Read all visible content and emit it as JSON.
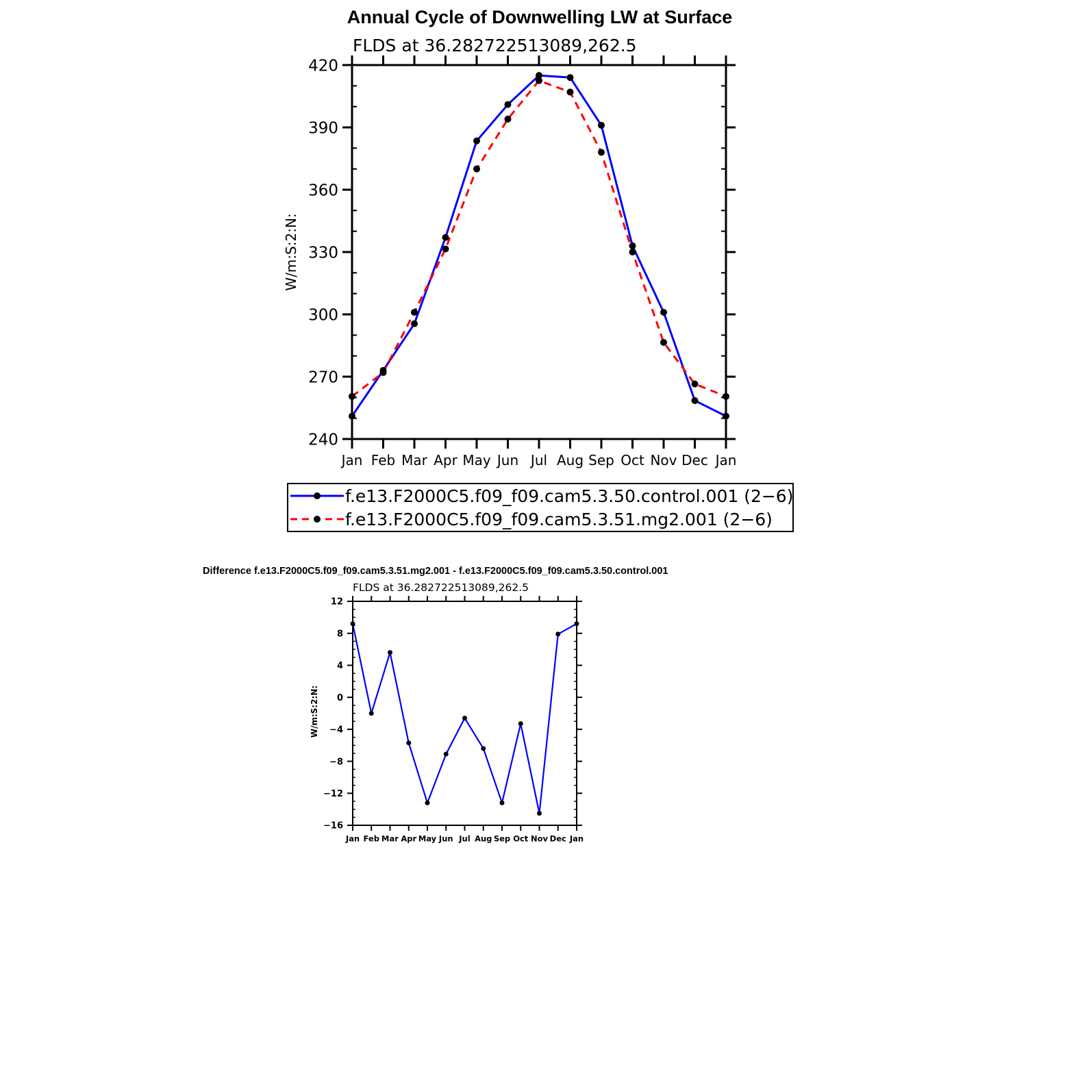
{
  "chart_data": [
    {
      "type": "line",
      "title": "Annual Cycle of Downwelling LW at Surface",
      "subtitle": "FLDS at 36.282722513089,262.5",
      "xlabel": "",
      "ylabel": "W/m:S:2:N:",
      "categories": [
        "Jan",
        "Feb",
        "Mar",
        "Apr",
        "May",
        "Jun",
        "Jul",
        "Aug",
        "Sep",
        "Oct",
        "Nov",
        "Dec",
        "Jan"
      ],
      "ylim": [
        240,
        420
      ],
      "yticks": [
        240,
        270,
        300,
        330,
        360,
        390,
        420
      ],
      "grid": false,
      "legend_position": "bottom",
      "series": [
        {
          "name": "f.e13.F2000C5.f09_f09.cam5.3.50.control.001 (2−6)",
          "color": "#0000ff",
          "dash": "solid",
          "values": [
            251,
            273,
            295.5,
            337,
            383.5,
            401,
            415,
            414,
            391,
            333,
            301,
            258.5,
            251
          ]
        },
        {
          "name": "f.e13.F2000C5.f09_f09.cam5.3.51.mg2.001 (2−6)",
          "color": "#ff0000",
          "dash": "dashed",
          "values": [
            260.5,
            272,
            301,
            331.5,
            370,
            394,
            412.5,
            407,
            378,
            330,
            286.5,
            266.5,
            260.5
          ]
        }
      ]
    },
    {
      "type": "line",
      "title": "Difference f.e13.F2000C5.f09_f09.cam5.3.51.mg2.001 - f.e13.F2000C5.f09_f09.cam5.3.50.control.001",
      "subtitle": "FLDS at 36.282722513089,262.5",
      "xlabel": "",
      "ylabel": "W/m:S:2:N:",
      "categories": [
        "Jan",
        "Feb",
        "Mar",
        "Apr",
        "May",
        "Jun",
        "Jul",
        "Aug",
        "Sep",
        "Oct",
        "Nov",
        "Dec",
        "Jan"
      ],
      "ylim": [
        -16,
        12
      ],
      "yticks": [
        -16,
        -12,
        -8,
        -4,
        0,
        4,
        8,
        12
      ],
      "grid": false,
      "series": [
        {
          "color": "#0000ff",
          "dash": "solid",
          "values": [
            9.2,
            -2,
            5.6,
            -5.7,
            -13.2,
            -7.1,
            -2.6,
            -6.4,
            -13.2,
            -3.3,
            -14.5,
            7.9,
            9.2
          ]
        }
      ]
    }
  ]
}
